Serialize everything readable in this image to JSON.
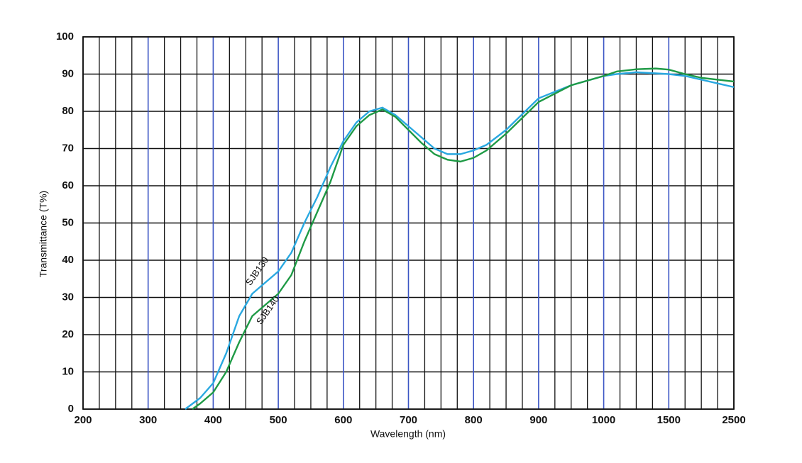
{
  "chart_data": {
    "type": "line",
    "x_label": "Wavelength (nm)",
    "y_label": "Transmittance (T%)",
    "xlim": [
      200,
      2500
    ],
    "xticks": [
      200,
      300,
      400,
      500,
      600,
      700,
      800,
      900,
      1000,
      1500,
      2500
    ],
    "ylim": [
      0,
      100
    ],
    "yticks": [
      0,
      10,
      20,
      30,
      40,
      50,
      60,
      70,
      80,
      90,
      100
    ],
    "grid": true,
    "series": [
      {
        "name": "SJB130",
        "color": "#29a8e0",
        "x": [
          357,
          380,
          400,
          420,
          440,
          460,
          480,
          500,
          520,
          540,
          560,
          580,
          600,
          620,
          640,
          660,
          680,
          700,
          720,
          740,
          760,
          780,
          800,
          820,
          850,
          900,
          950,
          1000,
          1100,
          1250,
          1500,
          1750,
          2000,
          2500
        ],
        "values": [
          0,
          3,
          7,
          15,
          25,
          31,
          34,
          37,
          42,
          50,
          57,
          65,
          72,
          77,
          80,
          81,
          79,
          76,
          73,
          70,
          68.5,
          68.5,
          69.5,
          71,
          75,
          83.5,
          87,
          89.5,
          90,
          90.5,
          90,
          89.5,
          88.5,
          86.5
        ]
      },
      {
        "name": "SJB140",
        "color": "#1e9a45",
        "x": [
          368,
          380,
          400,
          420,
          440,
          460,
          480,
          500,
          520,
          540,
          560,
          580,
          600,
          620,
          640,
          660,
          680,
          700,
          720,
          740,
          760,
          780,
          800,
          820,
          850,
          900,
          950,
          1000,
          1100,
          1250,
          1400,
          1500,
          1750,
          2000,
          2500
        ],
        "values": [
          0,
          1.5,
          4.5,
          10,
          18,
          25,
          28,
          31,
          36,
          45,
          53,
          61,
          71,
          76,
          79,
          80.5,
          78.5,
          75,
          71.5,
          68.5,
          67,
          66.5,
          67.5,
          69.5,
          74,
          82.5,
          87,
          89.5,
          90.7,
          91.3,
          91.5,
          91.2,
          90,
          89,
          88
        ]
      }
    ]
  }
}
